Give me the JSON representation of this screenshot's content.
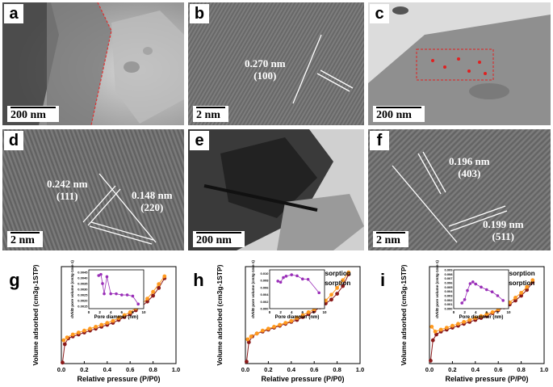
{
  "panels": {
    "a": {
      "letter": "a",
      "scale": "200 nm"
    },
    "b": {
      "letter": "b",
      "scale": "2 nm",
      "spacing": "0.270 nm",
      "plane": "(100)"
    },
    "c": {
      "letter": "c",
      "scale": "200 nm"
    },
    "d": {
      "letter": "d",
      "scale": "2 nm",
      "spacing1": "0.242 nm",
      "plane1": "(111)",
      "spacing2": "0.148 nm",
      "plane2": "(220)"
    },
    "e": {
      "letter": "e",
      "scale": "200 nm"
    },
    "f": {
      "letter": "f",
      "scale": "2 nm",
      "spacing1": "0.196 nm",
      "plane1": "(403)",
      "spacing2": "0.199 nm",
      "plane2": "(511)"
    }
  },
  "chart_data": [
    {
      "letter": "g",
      "type": "line",
      "xlabel": "Relative pressure (P/P0)",
      "ylabel": "Volume adsorbed (cm3g-1STP)",
      "xticks": [
        "0.0",
        "0.2",
        "0.4",
        "0.6",
        "0.8",
        "1.0"
      ],
      "xlim": [
        0,
        1
      ],
      "series": [
        {
          "x": [
            0.01,
            0.03,
            0.06,
            0.1,
            0.15,
            0.2,
            0.25,
            0.3,
            0.35,
            0.4,
            0.45,
            0.5,
            0.55,
            0.6,
            0.65,
            0.7,
            0.75,
            0.8,
            0.85,
            0.9
          ],
          "y": [
            1,
            20,
            26,
            28,
            30,
            32,
            34,
            36,
            38,
            40,
            42,
            45,
            48,
            51,
            55,
            59,
            64,
            70,
            78,
            88
          ]
        },
        {
          "x": [
            0.9,
            0.85,
            0.8,
            0.75,
            0.7,
            0.65,
            0.6,
            0.55,
            0.5,
            0.45,
            0.4,
            0.35,
            0.3,
            0.25,
            0.2,
            0.15,
            0.1,
            0.05,
            0.02
          ],
          "y": [
            90,
            82,
            74,
            67,
            61,
            57,
            53,
            50,
            47,
            44,
            42,
            40,
            38,
            36,
            34,
            32,
            30,
            27,
            24
          ]
        }
      ],
      "inset": {
        "ylabel": "dV/dD pore volume (cm3g-1nm-1)",
        "xlabel": "Pore diammer (nm)",
        "xticks": [
          "0",
          "2",
          "4",
          "6",
          "8",
          "10"
        ],
        "yticks": [
          "0.0015",
          "0.0020",
          "0.0025",
          "0.0030",
          "0.0035",
          "0.0040",
          "0.0045"
        ],
        "xlim": [
          0,
          10
        ],
        "ylim": [
          0.0013,
          0.0047
        ],
        "x": [
          1.8,
          2.2,
          2.5,
          2.8,
          3.3,
          4,
          5,
          6,
          7,
          8,
          9
        ],
        "y": [
          0.0042,
          0.0043,
          0.0035,
          0.0026,
          0.0041,
          0.0026,
          0.0026,
          0.0025,
          0.0025,
          0.0024,
          0.0017
        ]
      }
    },
    {
      "letter": "h",
      "type": "line",
      "xlabel": "Relative pressure (P/P0)",
      "ylabel": "Volume adsorbed (cm3g-1STP)",
      "xticks": [
        "0.0",
        "0.2",
        "0.4",
        "0.6",
        "0.8",
        "1.0"
      ],
      "xlim": [
        0,
        1
      ],
      "series": [
        {
          "name": "Adsorption",
          "x": [
            0.01,
            0.03,
            0.06,
            0.1,
            0.15,
            0.2,
            0.25,
            0.3,
            0.35,
            0.4,
            0.45,
            0.5,
            0.55,
            0.6,
            0.65,
            0.7,
            0.75,
            0.8,
            0.85,
            0.9
          ],
          "y": [
            2,
            22,
            28,
            31,
            33,
            35,
            37,
            39,
            41,
            43,
            45,
            48,
            51,
            54,
            58,
            62,
            66,
            72,
            80,
            92
          ]
        },
        {
          "name": "Desorption",
          "x": [
            0.9,
            0.85,
            0.8,
            0.75,
            0.7,
            0.65,
            0.6,
            0.55,
            0.5,
            0.45,
            0.4,
            0.35,
            0.3,
            0.25,
            0.2,
            0.15,
            0.1,
            0.05,
            0.02
          ],
          "y": [
            94,
            86,
            78,
            71,
            65,
            60,
            56,
            53,
            50,
            47,
            44,
            42,
            40,
            38,
            36,
            34,
            31,
            28,
            25
          ]
        }
      ],
      "inset": {
        "ylabel": "dV/dD pore volume (cm3g-1nm-1)",
        "xlabel": "Pore diammer (nm)",
        "xticks": [
          "0",
          "2",
          "4",
          "6",
          "8",
          "10"
        ],
        "yticks": [
          "0.000",
          "0.002",
          "0.004",
          "0.006",
          "0.008",
          "0.010"
        ],
        "xlim": [
          0,
          10
        ],
        "ylim": [
          0,
          0.011
        ],
        "x": [
          1.5,
          2,
          2.5,
          3,
          4,
          5,
          6,
          7,
          9
        ],
        "y": [
          0.0078,
          0.0075,
          0.0088,
          0.0092,
          0.0096,
          0.0093,
          0.0084,
          0.0083,
          0.0045
        ]
      }
    },
    {
      "letter": "i",
      "type": "line",
      "xlabel": "Relative pressure (P/P0)",
      "ylabel": "Volume adsorbed (cm3g-1STP)",
      "xticks": [
        "0.0",
        "0.2",
        "0.4",
        "0.6",
        "0.8",
        "1.0"
      ],
      "xlim": [
        0,
        1
      ],
      "series": [
        {
          "name": "Adsorption",
          "x": [
            0.01,
            0.03,
            0.06,
            0.1,
            0.15,
            0.2,
            0.25,
            0.3,
            0.35,
            0.4,
            0.45,
            0.5,
            0.55,
            0.6,
            0.65,
            0.7,
            0.75,
            0.8,
            0.85,
            0.9
          ],
          "y": [
            3,
            24,
            30,
            33,
            35,
            37,
            39,
            41,
            43,
            45,
            47,
            49,
            52,
            55,
            58,
            61,
            65,
            70,
            76,
            84
          ]
        },
        {
          "name": "Desorption",
          "x": [
            0.9,
            0.85,
            0.8,
            0.75,
            0.7,
            0.65,
            0.6,
            0.55,
            0.5,
            0.45,
            0.4,
            0.35,
            0.3,
            0.25,
            0.2,
            0.15,
            0.1,
            0.05,
            0.02
          ],
          "y": [
            86,
            79,
            73,
            68,
            63,
            59,
            56,
            53,
            51,
            49,
            47,
            45,
            43,
            41,
            39,
            37,
            35,
            33,
            38
          ]
        }
      ],
      "inset": {
        "ylabel": "dV/dD pore volume (cm3g-1nm-1)",
        "xlabel": "Pore diammer (nm)",
        "xticks": [
          "0",
          "2",
          "4",
          "6",
          "8",
          "10"
        ],
        "yticks": [
          "0.000",
          "0.001",
          "0.002",
          "0.003",
          "0.004",
          "0.005",
          "0.006",
          "0.007",
          "0.008",
          "0.009"
        ],
        "xlim": [
          0,
          10
        ],
        "ylim": [
          0,
          0.009
        ],
        "x": [
          1.5,
          2,
          2.5,
          3,
          3.5,
          4,
          5,
          6,
          7,
          8,
          9
        ],
        "y": [
          0.0013,
          0.0021,
          0.0042,
          0.0058,
          0.0062,
          0.0057,
          0.005,
          0.0044,
          0.0039,
          0.003,
          0.0019
        ]
      }
    }
  ],
  "legend": {
    "adsorption": "Adsorption",
    "desorption": "Desorption"
  },
  "colors": {
    "adsorption": "#8b1a1a",
    "desorption": "#ff9a1f",
    "inset": "#9a2fb8"
  }
}
